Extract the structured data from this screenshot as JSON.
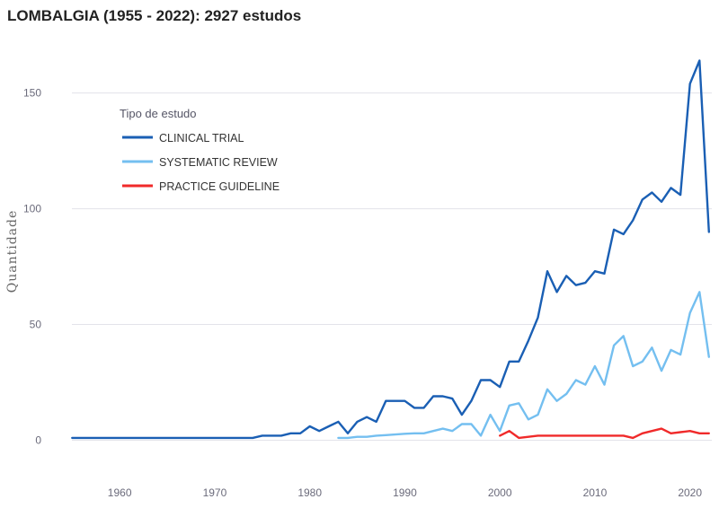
{
  "chart_data": {
    "type": "line",
    "title": "LOMBALGIA (1955 - 2022): 2927 estudos",
    "xlabel": "",
    "ylabel": "Quantidade",
    "xlim": [
      1954.5,
      2022.3
    ],
    "ylim": [
      -6,
      170
    ],
    "x_ticks": [
      1960,
      1970,
      1980,
      1990,
      2000,
      2010,
      2020
    ],
    "y_ticks": [
      0,
      50,
      100,
      150
    ],
    "grid": true,
    "legend": {
      "title": "Tipo de estudo",
      "placement": "top-left"
    },
    "series": [
      {
        "name": "CLINICAL TRIAL",
        "color": "#1a5fb4",
        "x": [
          1955,
          1956,
          1957,
          1958,
          1959,
          1960,
          1961,
          1962,
          1963,
          1964,
          1965,
          1966,
          1967,
          1968,
          1969,
          1970,
          1971,
          1972,
          1973,
          1974,
          1975,
          1976,
          1977,
          1978,
          1979,
          1980,
          1981,
          1982,
          1983,
          1984,
          1985,
          1986,
          1987,
          1988,
          1989,
          1990,
          1991,
          1992,
          1993,
          1994,
          1995,
          1996,
          1997,
          1998,
          1999,
          2000,
          2001,
          2002,
          2003,
          2004,
          2005,
          2006,
          2007,
          2008,
          2009,
          2010,
          2011,
          2012,
          2013,
          2014,
          2015,
          2016,
          2017,
          2018,
          2019,
          2020,
          2021,
          2022
        ],
        "y": [
          1,
          1,
          1,
          1,
          1,
          1,
          1,
          1,
          1,
          1,
          1,
          1,
          1,
          1,
          1,
          1,
          1,
          1,
          1,
          1,
          2,
          2,
          2,
          3,
          3,
          6,
          4,
          6,
          8,
          3,
          8,
          10,
          8,
          17,
          17,
          17,
          14,
          14,
          19,
          19,
          18,
          11,
          17,
          26,
          26,
          23,
          34,
          34,
          43,
          53,
          73,
          64,
          71,
          67,
          68,
          73,
          72,
          91,
          89,
          95,
          104,
          107,
          103,
          109,
          106,
          154,
          164,
          90
        ]
      },
      {
        "name": "SYSTEMATIC REVIEW",
        "color": "#74bff0",
        "x": [
          1983,
          1984,
          1985,
          1986,
          1987,
          1988,
          1989,
          1990,
          1991,
          1992,
          1993,
          1994,
          1995,
          1996,
          1997,
          1998,
          1999,
          2000,
          2001,
          2002,
          2003,
          2004,
          2005,
          2006,
          2007,
          2008,
          2009,
          2010,
          2011,
          2012,
          2013,
          2014,
          2015,
          2016,
          2017,
          2018,
          2019,
          2020,
          2021,
          2022
        ],
        "y": [
          1,
          1,
          1.5,
          1.5,
          2,
          2.2,
          2.5,
          2.8,
          3,
          3,
          4,
          5,
          4,
          7,
          7,
          2,
          11,
          4,
          15,
          16,
          9,
          11,
          22,
          17,
          20,
          26,
          24,
          32,
          24,
          41,
          45,
          32,
          34,
          40,
          30,
          39,
          37,
          55,
          64,
          36
        ]
      },
      {
        "name": "PRACTICE GUIDELINE",
        "color": "#f02a2a",
        "x": [
          2000,
          2001,
          2002,
          2003,
          2004,
          2005,
          2006,
          2007,
          2008,
          2009,
          2010,
          2011,
          2012,
          2013,
          2014,
          2015,
          2016,
          2017,
          2018,
          2019,
          2020,
          2021,
          2022
        ],
        "y": [
          2,
          4,
          1,
          1.5,
          2,
          2,
          2,
          2,
          2,
          2,
          2,
          2,
          2,
          2,
          1,
          3,
          4,
          5,
          3,
          3.5,
          4,
          3,
          3
        ]
      }
    ]
  }
}
